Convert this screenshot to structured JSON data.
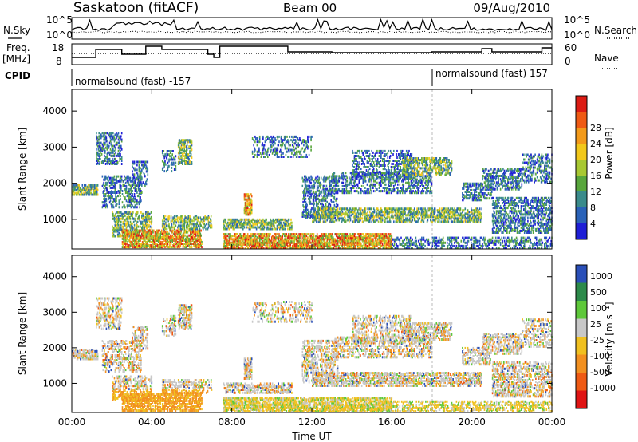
{
  "header": {
    "station": "Saskatoon (fitACF)",
    "beam": "Beam 00",
    "date": "09/Aug/2010"
  },
  "summary_panels": {
    "nsky_label": "N.Sky",
    "nsearch_label": "N.Search",
    "noise_ticks": [
      "10^5",
      "10^0"
    ],
    "freq_label_1": "Freq.",
    "freq_label_2": "[MHz]",
    "freq_ticks": [
      "18",
      "8"
    ],
    "nave_label": "Nave",
    "nave_ticks": [
      "60",
      "0"
    ],
    "cpid_label": "CPID",
    "cpid_segments": [
      {
        "label": "normalsound (fast) -157",
        "start_hour": 0
      },
      {
        "label": "normalsound (fast) 157",
        "start_hour": 18
      }
    ]
  },
  "chart_data": [
    {
      "type": "heatmap",
      "title": "",
      "xlabel": "",
      "ylabel": "Slant Range [km]",
      "xlim": [
        0,
        24
      ],
      "ylim": [
        180,
        4600
      ],
      "yticks": [
        1000,
        2000,
        3000,
        4000
      ],
      "colorbar": {
        "label": "Power [dB]",
        "ticks": [
          "4",
          "8",
          "12",
          "16",
          "20",
          "24",
          "28"
        ],
        "colors": [
          "#1f1fd6",
          "#2a62b8",
          "#3a8b8b",
          "#58a63c",
          "#a8c832",
          "#f2c81a",
          "#f39a1a",
          "#ef5a14",
          "#dc1c14"
        ]
      }
    },
    {
      "type": "heatmap",
      "title": "",
      "xlabel": "Time UT",
      "ylabel": "Slant Range [km]",
      "xlim": [
        0,
        24
      ],
      "ylim": [
        180,
        4600
      ],
      "xticks": [
        "00:00",
        "04:00",
        "08:00",
        "12:00",
        "16:00",
        "20:00",
        "00:00"
      ],
      "yticks": [
        1000,
        2000,
        3000,
        4000
      ],
      "colorbar": {
        "label": "Velocity [m s⁻¹]",
        "ticks": [
          "1000",
          "500",
          "100",
          "25",
          "-25",
          "-100",
          "-500",
          "-1000"
        ],
        "colors": [
          "#2a4fb8",
          "#2c8a4a",
          "#5ec83a",
          "#c8c8c8",
          "#f0c020",
          "#f29020",
          "#ef5a14",
          "#e01414"
        ]
      }
    }
  ]
}
